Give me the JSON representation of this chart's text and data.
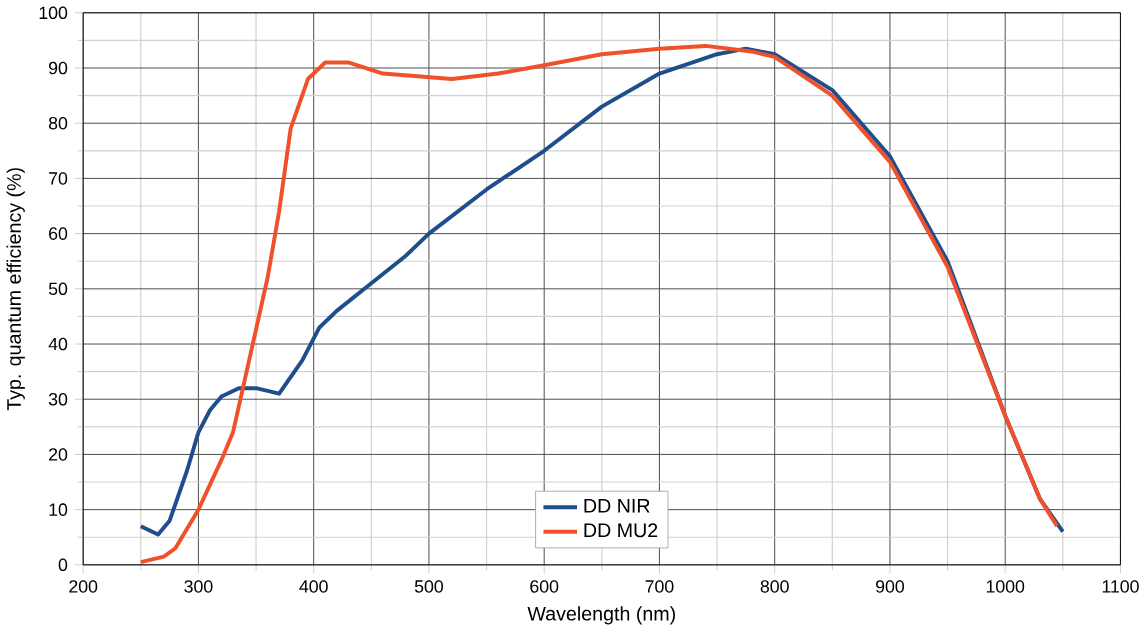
{
  "chart_data": {
    "type": "line",
    "xlabel": "Wavelength (nm)",
    "ylabel": "Typ. quantum efficiency (%)",
    "xlim": [
      200,
      1100
    ],
    "xticks": [
      200,
      300,
      400,
      500,
      600,
      700,
      800,
      900,
      1000,
      1100
    ],
    "ylim": [
      0,
      100
    ],
    "yticks": [
      0,
      10,
      20,
      30,
      40,
      50,
      60,
      70,
      80,
      90,
      100
    ],
    "grid": true,
    "legend": "bottom",
    "marker": "none",
    "line_style": "solid",
    "series": [
      {
        "name": "DD NIR",
        "color": "#1f4e8c",
        "x": [
          250,
          265,
          275,
          290,
          300,
          310,
          320,
          335,
          350,
          370,
          390,
          405,
          420,
          450,
          480,
          500,
          550,
          600,
          650,
          700,
          750,
          775,
          800,
          850,
          900,
          950,
          1000,
          1030,
          1050
        ],
        "values": [
          7,
          5.5,
          8,
          17,
          24,
          28,
          30.5,
          32,
          32,
          31,
          37,
          43,
          46,
          51,
          56,
          60,
          68,
          75,
          83,
          89,
          92.5,
          93.5,
          92.5,
          86,
          74,
          55,
          27,
          12,
          6
        ]
      },
      {
        "name": "DD MU2",
        "color": "#f0502a",
        "x": [
          250,
          270,
          280,
          300,
          320,
          330,
          345,
          360,
          370,
          380,
          395,
          410,
          430,
          460,
          490,
          520,
          560,
          600,
          650,
          700,
          740,
          780,
          800,
          850,
          900,
          950,
          1000,
          1030,
          1045
        ],
        "values": [
          0.5,
          1.5,
          3,
          10,
          19,
          24,
          38,
          52,
          64,
          79,
          88,
          91,
          91,
          89,
          88.5,
          88,
          89,
          90.5,
          92.5,
          93.5,
          94,
          93,
          92,
          85,
          73,
          54,
          27,
          12,
          7
        ]
      }
    ]
  }
}
